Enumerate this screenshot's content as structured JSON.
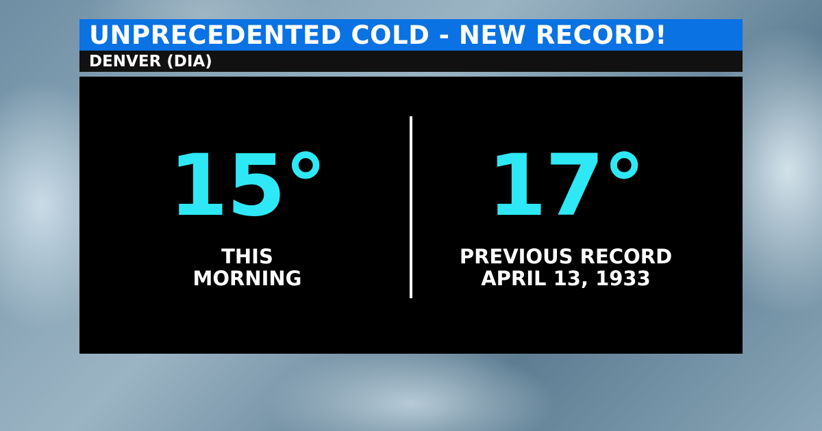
{
  "headline": "UNPRECEDENTED COLD - NEW RECORD!",
  "location": "DENVER (DIA)",
  "current": {
    "temperature": "15°",
    "label_line1": "THIS",
    "label_line2": "MORNING"
  },
  "previous": {
    "temperature": "17°",
    "label_line1": "PREVIOUS RECORD",
    "label_line2": "APRIL 13, 1933"
  },
  "colors": {
    "banner": "#0a72e3",
    "temperature": "#2fe8f5",
    "panel": "#000000"
  }
}
